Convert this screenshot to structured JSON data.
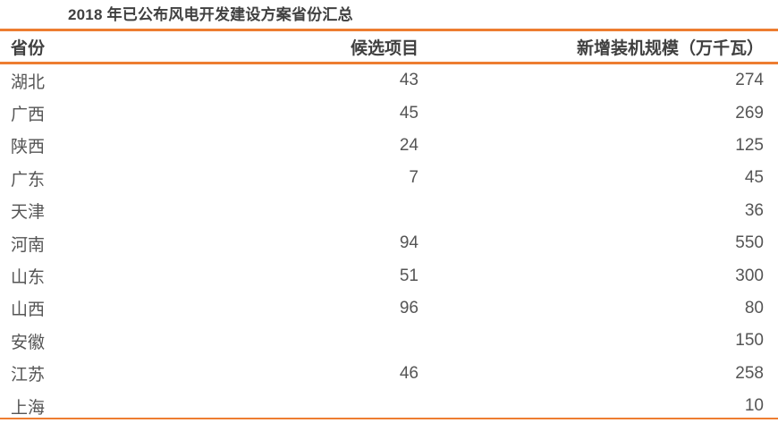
{
  "title": "2018 年已公布风电开发建设方案省份汇总",
  "columns": [
    "省份",
    "候选项目",
    "新增装机规模（万千瓦）"
  ],
  "rows": [
    [
      "湖北",
      "43",
      "274"
    ],
    [
      "广西",
      "45",
      "269"
    ],
    [
      "陕西",
      "24",
      "125"
    ],
    [
      "广东",
      "7",
      "45"
    ],
    [
      "天津",
      "",
      "36"
    ],
    [
      "河南",
      "94",
      "550"
    ],
    [
      "山东",
      "51",
      "300"
    ],
    [
      "山西",
      "96",
      "80"
    ],
    [
      "安徽",
      "",
      "150"
    ],
    [
      "江苏",
      "46",
      "258"
    ],
    [
      "上海",
      "",
      "10"
    ]
  ],
  "colors": {
    "accent": "#ed7d31"
  }
}
